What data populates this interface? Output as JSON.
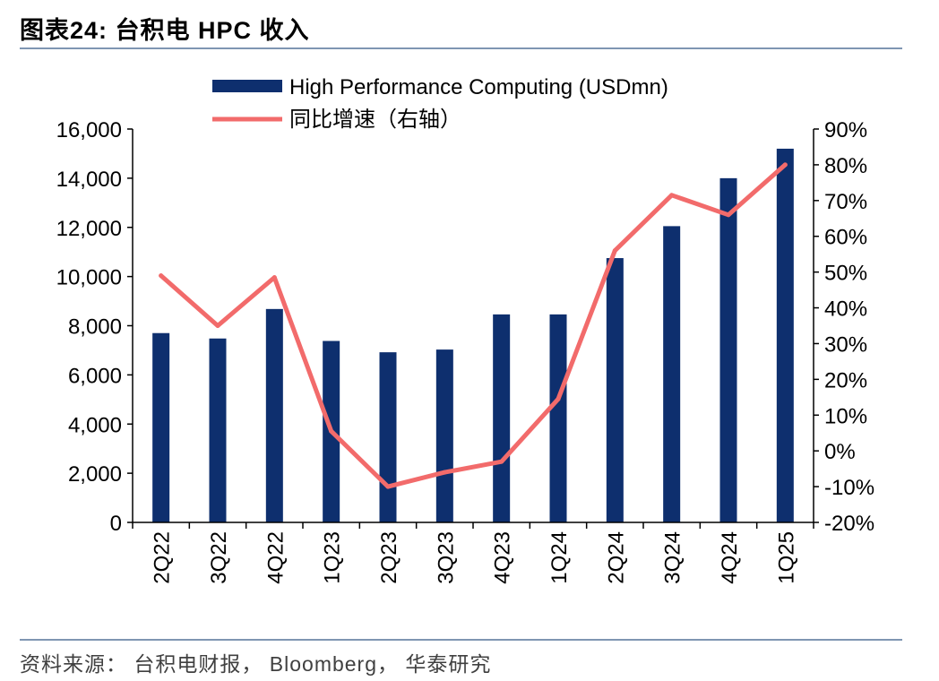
{
  "title": "图表24:   台积电 HPC 收入",
  "source": "资料来源： 台积电财报， Bloomberg， 华泰研究",
  "colors": {
    "bar": "#0e2f6e",
    "line": "#f26b6b",
    "rule": "#7f96b2"
  },
  "chart_data": {
    "type": "bar+line",
    "categories": [
      "2Q22",
      "3Q22",
      "4Q22",
      "1Q23",
      "2Q23",
      "3Q23",
      "4Q23",
      "1Q24",
      "2Q24",
      "3Q24",
      "4Q24",
      "1Q25"
    ],
    "series": [
      {
        "name": "High Performance Computing (USDmn)",
        "type": "bar",
        "axis": "left",
        "values": [
          7700,
          7480,
          8680,
          7380,
          6920,
          7030,
          8460,
          8460,
          10750,
          12050,
          14000,
          15200
        ]
      },
      {
        "name": "同比增速（右轴）",
        "type": "line",
        "axis": "right",
        "values": [
          49,
          35,
          48.5,
          5.5,
          -10,
          -6,
          -3,
          14.5,
          56,
          71.5,
          66,
          80
        ]
      }
    ],
    "y_left": {
      "min": 0,
      "max": 16000,
      "ticks": [
        "0",
        "2,000",
        "4,000",
        "6,000",
        "8,000",
        "10,000",
        "12,000",
        "14,000",
        "16,000"
      ]
    },
    "y_right": {
      "min": -20,
      "max": 90,
      "ticks": [
        "-20%",
        "-10%",
        "0%",
        "10%",
        "20%",
        "30%",
        "40%",
        "50%",
        "60%",
        "70%",
        "80%",
        "90%"
      ]
    },
    "legend": "top-center",
    "grid": false
  }
}
